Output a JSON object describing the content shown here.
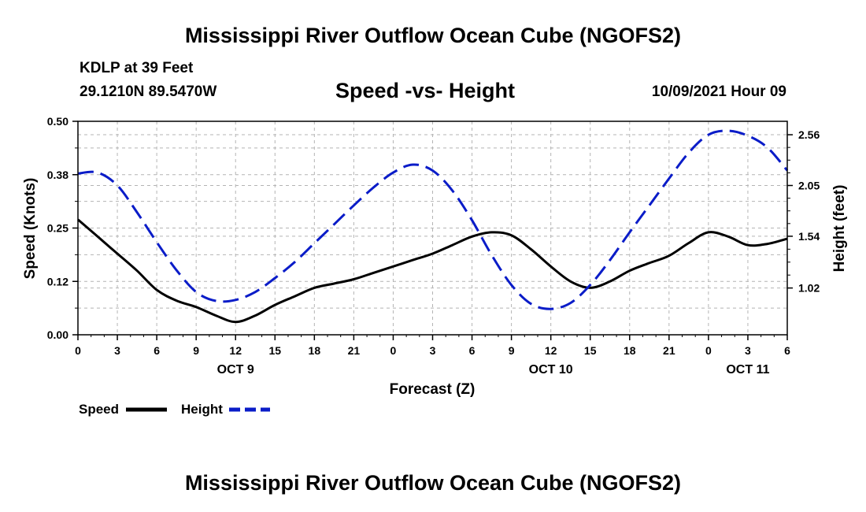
{
  "header": {
    "title": "Mississippi River Outflow Ocean Cube (NGOFS2)",
    "station": "KDLP at 39 Feet",
    "coords": "29.1210N  89.5470W",
    "subtitle": "Speed -vs- Height",
    "datetime": "10/09/2021 Hour 09"
  },
  "footer": {
    "title": "Mississippi River Outflow Ocean Cube (NGOFS2)"
  },
  "legend": {
    "speed_label": "Speed",
    "height_label": "Height"
  },
  "chart_data": {
    "type": "line",
    "title": "Speed -vs- Height",
    "xlabel": "Forecast (Z)",
    "ylabel": "Speed (Knots)",
    "y2label": "Height (feet)",
    "xlim": [
      0,
      54
    ],
    "ylim": [
      0.0,
      0.5
    ],
    "y2lim": [
      0.55,
      2.695
    ],
    "x_ticks": [
      0,
      3,
      6,
      9,
      12,
      15,
      18,
      21,
      24,
      27,
      30,
      33,
      36,
      39,
      42,
      45,
      48,
      51,
      54
    ],
    "x_tick_labels": [
      "0",
      "3",
      "6",
      "9",
      "12",
      "15",
      "18",
      "21",
      "0",
      "3",
      "6",
      "9",
      "12",
      "15",
      "18",
      "21",
      "0",
      "3",
      "6"
    ],
    "date_labels": [
      {
        "x": 12,
        "label": "OCT 9"
      },
      {
        "x": 36,
        "label": "OCT 10"
      },
      {
        "x": 51,
        "label": "OCT 11"
      }
    ],
    "y_ticks": [
      0.0,
      0.125,
      0.25,
      0.375,
      0.5
    ],
    "y_tick_labels": [
      "0.00",
      "0.12",
      "0.25",
      "0.38",
      "0.50"
    ],
    "y2_ticks": [
      1.02,
      1.54,
      2.05,
      2.56
    ],
    "y2_tick_labels": [
      "1.02",
      "1.54",
      "2.05",
      "2.56"
    ],
    "grid": true,
    "series": [
      {
        "name": "Speed",
        "axis": "left",
        "color": "#000000",
        "style": "solid",
        "x": [
          0,
          1.5,
          3,
          4.5,
          6,
          7.5,
          9,
          10.5,
          12,
          13.5,
          15,
          16.5,
          18,
          19.5,
          21,
          22.5,
          24,
          25.5,
          27,
          28.5,
          30,
          31.5,
          33,
          34.5,
          36,
          37.5,
          39,
          40.5,
          42,
          43.5,
          45,
          46.5,
          48,
          49.5,
          51,
          52.5,
          54
        ],
        "values": [
          0.27,
          0.23,
          0.19,
          0.15,
          0.105,
          0.08,
          0.065,
          0.045,
          0.03,
          0.045,
          0.07,
          0.09,
          0.11,
          0.12,
          0.13,
          0.145,
          0.16,
          0.175,
          0.19,
          0.21,
          0.23,
          0.24,
          0.233,
          0.2,
          0.16,
          0.125,
          0.11,
          0.125,
          0.15,
          0.168,
          0.185,
          0.215,
          0.24,
          0.23,
          0.21,
          0.213,
          0.225
        ]
      },
      {
        "name": "Height",
        "axis": "right",
        "color": "#0a1cc8",
        "style": "dashed",
        "x": [
          0,
          1.5,
          3,
          4.5,
          6,
          7.5,
          9,
          10.5,
          12,
          13.5,
          15,
          16.5,
          18,
          19.5,
          21,
          22.5,
          24,
          25.5,
          27,
          28.5,
          30,
          31.5,
          33,
          34.5,
          36,
          37.5,
          39,
          40.5,
          42,
          43.5,
          45,
          46.5,
          48,
          49.5,
          51,
          52.5,
          54
        ],
        "values": [
          2.17,
          2.18,
          2.05,
          1.78,
          1.48,
          1.2,
          0.98,
          0.89,
          0.9,
          0.98,
          1.12,
          1.28,
          1.47,
          1.66,
          1.85,
          2.03,
          2.18,
          2.26,
          2.2,
          2.0,
          1.7,
          1.35,
          1.05,
          0.86,
          0.81,
          0.87,
          1.05,
          1.3,
          1.58,
          1.85,
          2.12,
          2.38,
          2.56,
          2.6,
          2.55,
          2.43,
          2.2
        ]
      }
    ]
  }
}
